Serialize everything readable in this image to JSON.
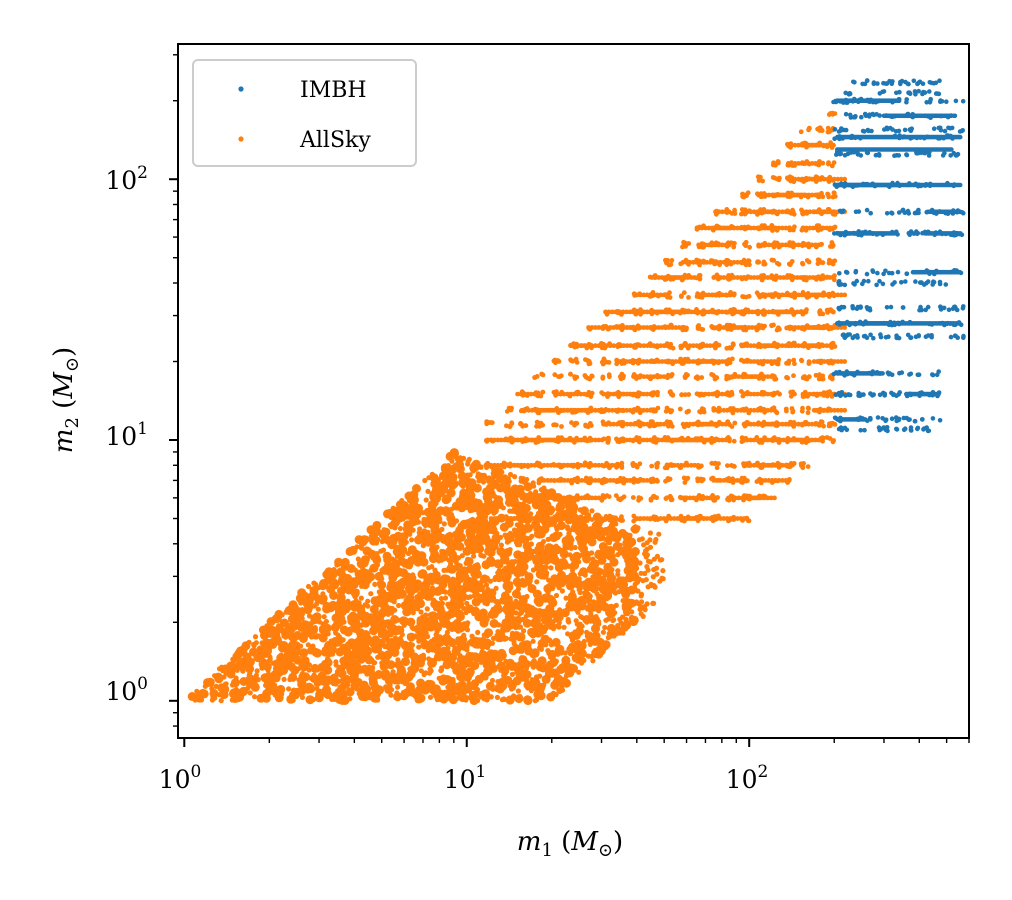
{
  "chart_data": {
    "type": "scatter",
    "xscale": "log",
    "yscale": "log",
    "xlim": [
      0.95,
      600
    ],
    "ylim": [
      0.72,
      330
    ],
    "xlabel": {
      "var": "m",
      "sub": "1",
      "unit": "M",
      "unit_sub": "⊙"
    },
    "ylabel": {
      "var": "m",
      "sub": "2",
      "unit": "M",
      "unit_sub": "⊙"
    },
    "x_ticks": [
      {
        "value": 1,
        "base": "10",
        "exp": "0"
      },
      {
        "value": 10,
        "base": "10",
        "exp": "1"
      },
      {
        "value": 100,
        "base": "10",
        "exp": "2"
      }
    ],
    "y_ticks": [
      {
        "value": 1,
        "base": "10",
        "exp": "0"
      },
      {
        "value": 10,
        "base": "10",
        "exp": "1"
      },
      {
        "value": 100,
        "base": "10",
        "exp": "2"
      }
    ],
    "legend": {
      "location": "upper-left"
    },
    "series": [
      {
        "name": "IMBH",
        "color": "#1f77b4",
        "region": {
          "m1_min": 200,
          "m1_max": 560,
          "m2_min": 10,
          "m2_max": 250,
          "q_max": 1
        },
        "m1_columns": [
          205,
          215,
          225,
          240,
          255,
          270,
          290,
          310,
          330,
          350,
          375,
          400,
          430,
          460,
          490,
          520,
          555
        ],
        "m2_rows": [
          11,
          12,
          15,
          18,
          25,
          28,
          32,
          40,
          44,
          62,
          75,
          95,
          125,
          145,
          155,
          175,
          200,
          215,
          235
        ]
      },
      {
        "name": "AllSky",
        "color": "#ff7f0e",
        "dense_region": {
          "m1_min": 1,
          "m1_max": 50,
          "m2_min": 1,
          "m2_max": 9,
          "q_max": 20
        },
        "sparse_region": {
          "m1_min": 10,
          "m1_max": 195,
          "m2_min": 1,
          "m2_max": 195
        },
        "peak_m2": 9,
        "m1_columns": [
          12,
          14,
          16,
          18,
          21,
          24,
          27,
          31,
          35,
          40,
          46,
          52,
          59,
          67,
          76,
          86,
          97,
          110,
          124,
          140,
          158,
          178,
          195
        ],
        "m2_rows": [
          5,
          6,
          7,
          8,
          10,
          11.5,
          13,
          15,
          17.5,
          20,
          23,
          27,
          31,
          36,
          42,
          48,
          56,
          65,
          75,
          87,
          100,
          115,
          135,
          155,
          180
        ]
      }
    ]
  }
}
